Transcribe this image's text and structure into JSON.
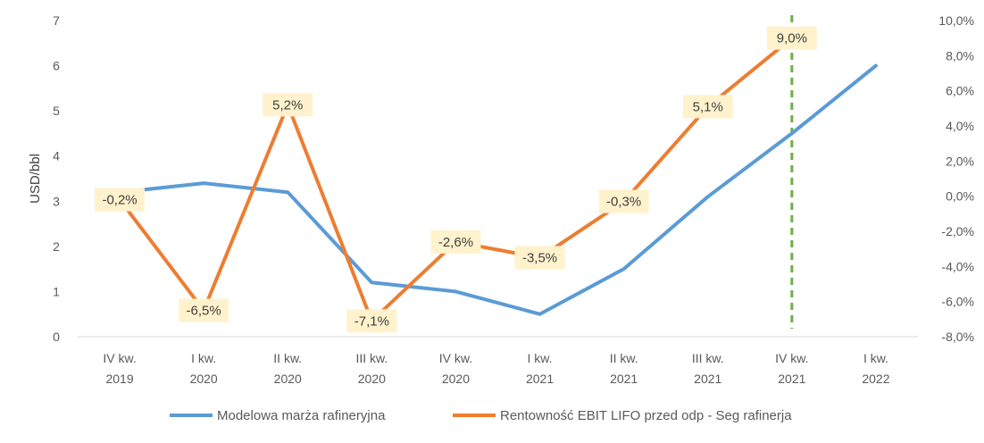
{
  "chart_data": {
    "type": "line",
    "categories": [
      [
        "IV kw.",
        "2019"
      ],
      [
        "I kw.",
        "2020"
      ],
      [
        "II kw.",
        "2020"
      ],
      [
        "III kw.",
        "2020"
      ],
      [
        "IV kw.",
        "2020"
      ],
      [
        "I kw.",
        "2021"
      ],
      [
        "II kw.",
        "2021"
      ],
      [
        "III kw.",
        "2021"
      ],
      [
        "IV kw.",
        "2021"
      ],
      [
        "I kw.",
        "2022"
      ]
    ],
    "ylabel": "USD/bbl",
    "ylim": [
      0,
      7
    ],
    "y_ticks": [
      "0",
      "1",
      "2",
      "3",
      "4",
      "5",
      "6",
      "7"
    ],
    "y2lim": [
      -8.0,
      10.0
    ],
    "y2_ticks": [
      "-8,0%",
      "-6,0%",
      "-4,0%",
      "-2,0%",
      "0,0%",
      "2,0%",
      "4,0%",
      "6,0%",
      "8,0%",
      "10,0%"
    ],
    "grid": false,
    "legend_position": "bottom",
    "series": [
      {
        "name": "Modelowa marża rafineryjna",
        "axis": "left",
        "color": "#5B9BD5",
        "values": [
          3.2,
          3.4,
          3.2,
          1.2,
          1.0,
          0.5,
          1.5,
          3.1,
          4.5,
          6.0
        ]
      },
      {
        "name": "Rentowność EBIT LIFO przed odp - Seg rafinerja",
        "axis": "right",
        "color": "#ED7D31",
        "values": [
          -0.2,
          -6.5,
          5.2,
          -7.1,
          -2.6,
          -3.5,
          -0.3,
          5.1,
          9.0,
          null
        ],
        "labels": [
          "-0,2%",
          "-6,5%",
          "5,2%",
          "-7,1%",
          "-2,6%",
          "-3,5%",
          "-0,3%",
          "5,1%",
          "9,0%",
          null
        ]
      }
    ],
    "vertical_marker": {
      "category_index": 8,
      "color": "#70AD47",
      "style": "dashed"
    }
  }
}
